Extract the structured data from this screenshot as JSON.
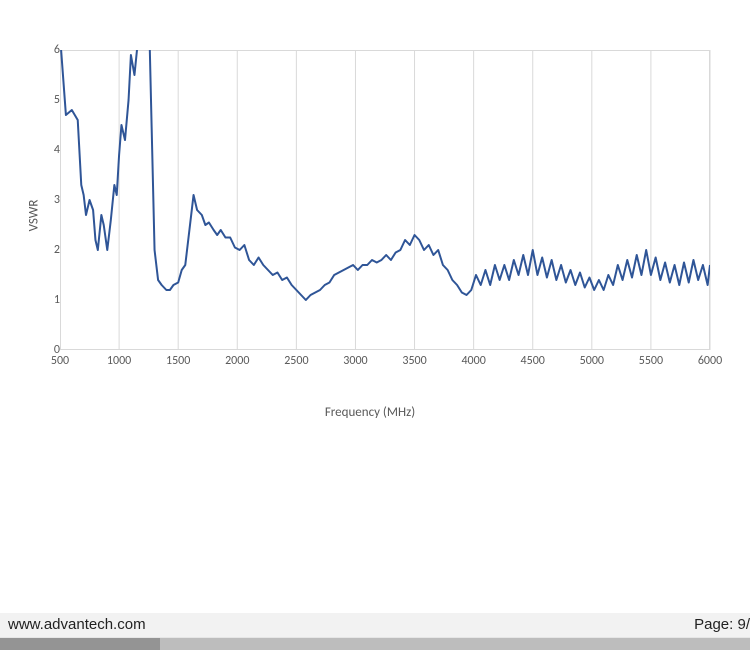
{
  "footer": {
    "url": "www.advantech.com",
    "page_label": "Page: 9/"
  },
  "chart": {
    "type": "line",
    "xlabel": "Frequency (MHz)",
    "ylabel": "VSWR",
    "label_fontsize": 13,
    "label_color": "#595959",
    "tick_fontsize": 12,
    "tick_color": "#595959",
    "xlim": [
      500,
      6000
    ],
    "ylim": [
      0,
      6
    ],
    "xtick_step": 500,
    "ytick_step": 1,
    "xticks": [
      500,
      1000,
      1500,
      2000,
      2500,
      3000,
      3500,
      4000,
      4500,
      5000,
      5500,
      6000
    ],
    "yticks": [
      0,
      1,
      2,
      3,
      4,
      5,
      6
    ],
    "grid": true,
    "grid_color": "#d9d9d9",
    "border_color": "#d9d9d9",
    "background_color": "#ffffff",
    "line_color": "#2f5597",
    "line_width": 2,
    "series": [
      {
        "name": "VSWR",
        "x": [
          500,
          550,
          600,
          650,
          680,
          700,
          720,
          750,
          780,
          800,
          820,
          850,
          870,
          900,
          930,
          960,
          980,
          1000,
          1020,
          1050,
          1080,
          1100,
          1130,
          1160,
          1180,
          1200,
          1250,
          1280,
          1300,
          1330,
          1360,
          1400,
          1430,
          1460,
          1500,
          1530,
          1560,
          1600,
          1630,
          1660,
          1700,
          1730,
          1760,
          1800,
          1830,
          1860,
          1900,
          1940,
          1980,
          2020,
          2060,
          2100,
          2140,
          2180,
          2220,
          2260,
          2300,
          2340,
          2380,
          2420,
          2460,
          2500,
          2540,
          2580,
          2620,
          2660,
          2700,
          2740,
          2780,
          2820,
          2860,
          2900,
          2940,
          2980,
          3020,
          3060,
          3100,
          3140,
          3180,
          3220,
          3260,
          3300,
          3340,
          3380,
          3420,
          3460,
          3500,
          3540,
          3580,
          3620,
          3660,
          3700,
          3740,
          3780,
          3820,
          3860,
          3900,
          3940,
          3980,
          4020,
          4060,
          4100,
          4140,
          4180,
          4220,
          4260,
          4300,
          4340,
          4380,
          4420,
          4460,
          4500,
          4540,
          4580,
          4620,
          4660,
          4700,
          4740,
          4780,
          4820,
          4860,
          4900,
          4940,
          4980,
          5020,
          5060,
          5100,
          5140,
          5180,
          5220,
          5260,
          5300,
          5340,
          5380,
          5420,
          5460,
          5500,
          5540,
          5580,
          5620,
          5660,
          5700,
          5740,
          5780,
          5820,
          5860,
          5900,
          5940,
          5980,
          6000
        ],
        "y": [
          6.3,
          4.7,
          4.8,
          4.6,
          3.3,
          3.1,
          2.7,
          3.0,
          2.8,
          2.2,
          2.0,
          2.7,
          2.5,
          2.0,
          2.6,
          3.3,
          3.1,
          3.9,
          4.5,
          4.2,
          5.0,
          5.9,
          5.5,
          6.2,
          6.4,
          7.5,
          7.0,
          4.0,
          2.0,
          1.4,
          1.3,
          1.2,
          1.2,
          1.3,
          1.35,
          1.6,
          1.7,
          2.5,
          3.1,
          2.8,
          2.7,
          2.5,
          2.55,
          2.4,
          2.3,
          2.4,
          2.25,
          2.25,
          2.05,
          2.0,
          2.1,
          1.8,
          1.7,
          1.85,
          1.7,
          1.6,
          1.5,
          1.55,
          1.4,
          1.45,
          1.3,
          1.2,
          1.1,
          1.0,
          1.1,
          1.15,
          1.2,
          1.3,
          1.35,
          1.5,
          1.55,
          1.6,
          1.65,
          1.7,
          1.6,
          1.7,
          1.7,
          1.8,
          1.75,
          1.8,
          1.9,
          1.8,
          1.95,
          2.0,
          2.2,
          2.1,
          2.3,
          2.2,
          2.0,
          2.1,
          1.9,
          2.0,
          1.7,
          1.6,
          1.4,
          1.3,
          1.15,
          1.1,
          1.2,
          1.5,
          1.3,
          1.6,
          1.3,
          1.7,
          1.4,
          1.7,
          1.4,
          1.8,
          1.5,
          1.9,
          1.5,
          2.0,
          1.5,
          1.85,
          1.45,
          1.8,
          1.4,
          1.7,
          1.35,
          1.6,
          1.3,
          1.55,
          1.25,
          1.45,
          1.2,
          1.4,
          1.2,
          1.5,
          1.3,
          1.7,
          1.4,
          1.8,
          1.45,
          1.9,
          1.5,
          2.0,
          1.5,
          1.85,
          1.4,
          1.75,
          1.35,
          1.7,
          1.3,
          1.75,
          1.35,
          1.8,
          1.4,
          1.7,
          1.3,
          1.7
        ]
      }
    ]
  },
  "colors": {
    "footer_bg": "#f2f2f2",
    "bottombar_bg": "#bdbdbd",
    "bottombar_seg": "#949494",
    "text_dark": "#222222"
  }
}
